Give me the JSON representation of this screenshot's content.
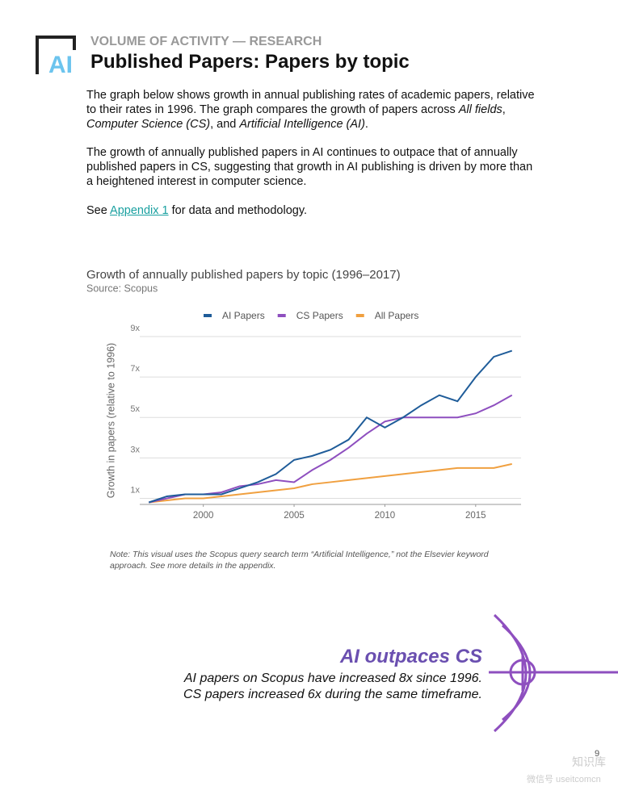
{
  "header": {
    "logo": "AI",
    "kicker": "VOLUME OF ACTIVITY — RESEARCH",
    "title": "Published Papers: Papers by topic"
  },
  "paragraphs": [
    [
      "The graph below shows growth in annual publishing rates of academic papers, relative to their rates in 1996. The graph compares the growth of papers across ",
      "All fields",
      ", ",
      "Computer Science (CS)",
      ", and ",
      "Artificial Intelligence (AI)",
      "."
    ],
    [
      "The growth of annually published papers in AI continues to outpace that of annually published papers in CS, suggesting that growth in AI publishing is driven by more than a heightened interest in computer science."
    ],
    [
      "See ",
      "Appendix 1",
      " for data and methodology."
    ]
  ],
  "chart_data": {
    "type": "line",
    "title": "Growth of annually published papers by topic (1996–2017)",
    "subtitle": "Source: Scopus",
    "y_label": "Growth in papers (relative to 1996)",
    "x": [
      1997,
      1998,
      1999,
      2000,
      2001,
      2002,
      2003,
      2004,
      2005,
      2006,
      2007,
      2008,
      2009,
      2010,
      2011,
      2012,
      2013,
      2014,
      2015,
      2016,
      2017
    ],
    "series": [
      {
        "name": "AI Papers",
        "color": "#1f5c99",
        "values": [
          0.8,
          1.1,
          1.2,
          1.2,
          1.2,
          1.5,
          1.8,
          2.2,
          2.9,
          3.1,
          3.4,
          3.9,
          5.0,
          4.5,
          5.0,
          5.6,
          6.1,
          5.8,
          7.0,
          8.0,
          8.3
        ]
      },
      {
        "name": "CS Papers",
        "color": "#8e4fbf",
        "values": [
          0.8,
          1.0,
          1.2,
          1.2,
          1.3,
          1.6,
          1.7,
          1.9,
          1.8,
          2.4,
          2.9,
          3.5,
          4.2,
          4.8,
          5.0,
          5.0,
          5.0,
          5.0,
          5.2,
          5.6,
          6.1
        ]
      },
      {
        "name": "All Papers",
        "color": "#f0a040",
        "values": [
          0.8,
          0.9,
          1.0,
          1.0,
          1.1,
          1.2,
          1.3,
          1.4,
          1.5,
          1.7,
          1.8,
          1.9,
          2.0,
          2.1,
          2.2,
          2.3,
          2.4,
          2.5,
          2.5,
          2.5,
          2.7
        ]
      }
    ],
    "xlim": [
      1996.5,
      2017.5
    ],
    "xticks": [
      2000,
      2005,
      2010,
      2015
    ],
    "ylim": [
      0.7,
      9
    ],
    "yticks": [
      {
        "value": 1,
        "label": "1x"
      },
      {
        "value": 3,
        "label": "3x"
      },
      {
        "value": 5,
        "label": "5x"
      },
      {
        "value": 7,
        "label": "7x"
      },
      {
        "value": 9,
        "label": "9x"
      }
    ],
    "grid": true,
    "legend": "top"
  },
  "note": "Note: This visual uses the Scopus query search term “Artificial Intelligence,” not the Elsevier keyword approach. See more details in the appendix.",
  "callout": {
    "title": "AI outpaces CS",
    "lines": [
      "AI papers on Scopus have increased 8x since 1996.",
      "CS papers increased 6x during the same timeframe."
    ]
  },
  "page_number": "9",
  "watermark": [
    "知识库",
    "微信号 useitcomcn"
  ]
}
